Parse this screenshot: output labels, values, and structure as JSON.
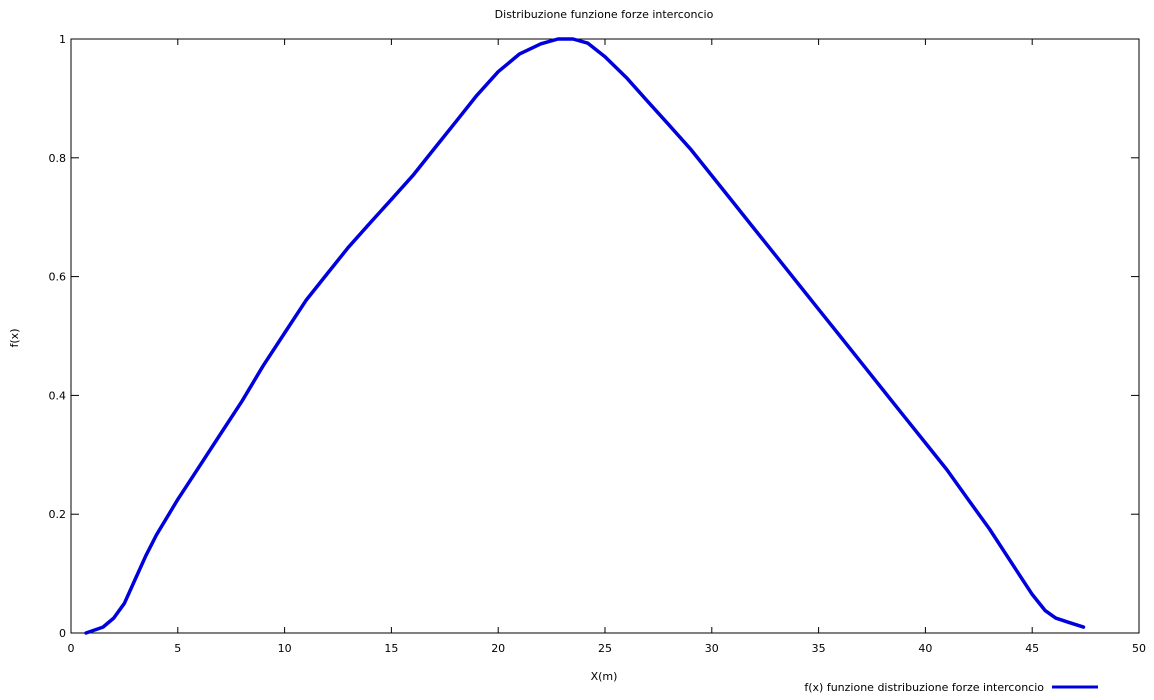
{
  "chart_data": {
    "type": "line",
    "title": "Distribuzione funzione forze interconcio",
    "xlabel": "X(m)",
    "ylabel": "f(x)",
    "xlim": [
      0,
      50
    ],
    "ylim": [
      0,
      1
    ],
    "xticks": [
      0,
      5,
      10,
      15,
      20,
      25,
      30,
      35,
      40,
      45,
      50
    ],
    "yticks": [
      0,
      0.2,
      0.4,
      0.6,
      0.8,
      1
    ],
    "xtick_labels": [
      "0",
      "5",
      "10",
      "15",
      "20",
      "25",
      "30",
      "35",
      "40",
      "45",
      "50"
    ],
    "ytick_labels": [
      "0",
      "0.2",
      "0.4",
      "0.6",
      "0.8",
      "1"
    ],
    "grid": false,
    "legend_position": "bottom-right",
    "series": [
      {
        "name": "f(x) funzione distribuzione forze interconcio",
        "color": "#0000dd",
        "x": [
          0.7,
          1.5,
          2.0,
          2.5,
          3.0,
          3.5,
          4.0,
          5.0,
          6.0,
          7.0,
          8.0,
          9.0,
          10.0,
          11.0,
          12.0,
          13.0,
          14.0,
          15.0,
          16.0,
          17.0,
          18.0,
          19.0,
          20.0,
          21.0,
          22.0,
          22.8,
          23.5,
          24.2,
          25.0,
          26.0,
          27.0,
          28.0,
          29.0,
          30.0,
          31.0,
          32.0,
          33.0,
          34.0,
          35.0,
          36.0,
          37.0,
          38.0,
          39.0,
          40.0,
          41.0,
          42.0,
          43.0,
          44.0,
          45.0,
          45.6,
          46.1,
          46.7,
          47.4
        ],
        "y": [
          0.0,
          0.01,
          0.025,
          0.05,
          0.09,
          0.13,
          0.165,
          0.225,
          0.28,
          0.335,
          0.39,
          0.45,
          0.505,
          0.56,
          0.605,
          0.65,
          0.69,
          0.73,
          0.77,
          0.815,
          0.86,
          0.905,
          0.945,
          0.975,
          0.992,
          1.0,
          1.0,
          0.993,
          0.97,
          0.935,
          0.895,
          0.855,
          0.815,
          0.77,
          0.725,
          0.68,
          0.635,
          0.59,
          0.545,
          0.5,
          0.455,
          0.41,
          0.365,
          0.32,
          0.275,
          0.225,
          0.175,
          0.12,
          0.065,
          0.038,
          0.025,
          0.018,
          0.01
        ]
      }
    ]
  }
}
